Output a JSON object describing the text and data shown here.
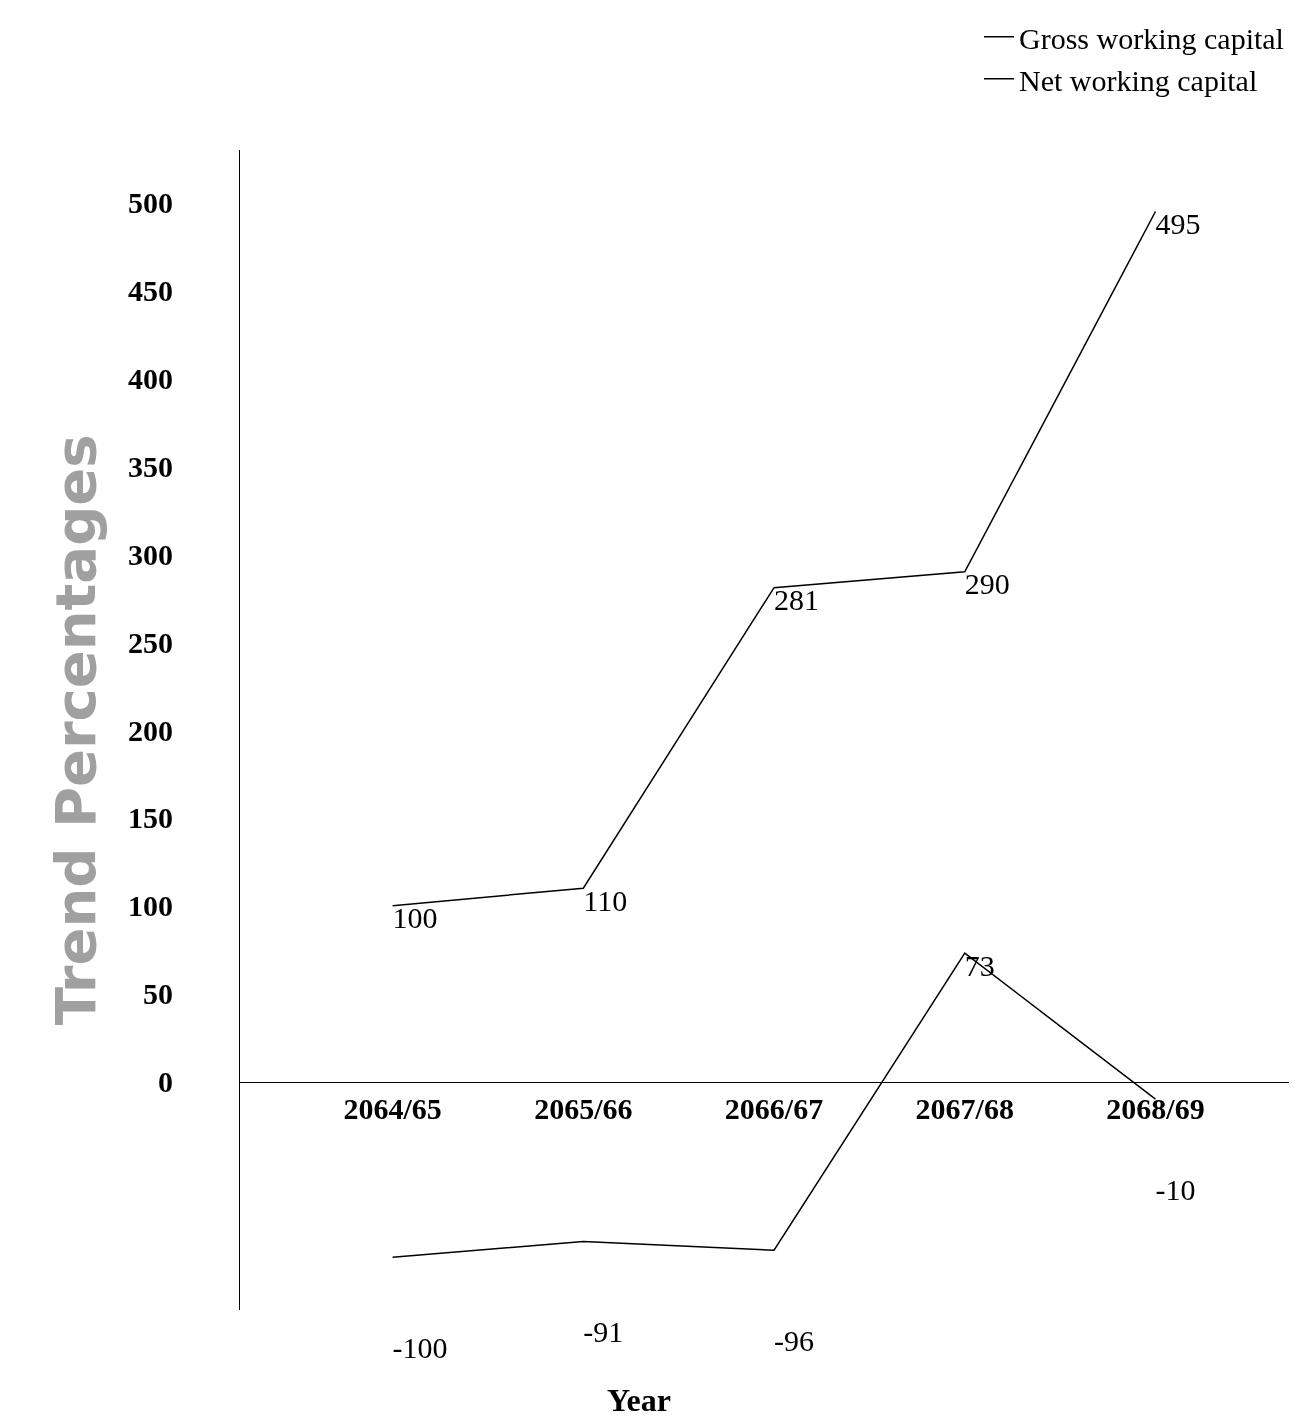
{
  "chart_data": {
    "type": "line",
    "xlabel": "Year",
    "ylabel": "Trend Percentages",
    "categories": [
      "2064/65",
      "2065/66",
      "2066/67",
      "2067/68",
      "2068/69"
    ],
    "series": [
      {
        "name": "Gross working capital",
        "color": "#000000",
        "values": [
          100,
          110,
          281,
          290,
          495
        ]
      },
      {
        "name": "Net working capital",
        "color": "#000000",
        "values": [
          -100,
          -91,
          -96,
          73,
          -10
        ]
      }
    ],
    "ylim": [
      -130,
      530
    ],
    "yticks": [
      0,
      50,
      100,
      150,
      200,
      250,
      300,
      350,
      400,
      450,
      500
    ],
    "data_labels": true,
    "grid": false,
    "legend": "top right",
    "marker": "none",
    "line_style": "solid"
  }
}
